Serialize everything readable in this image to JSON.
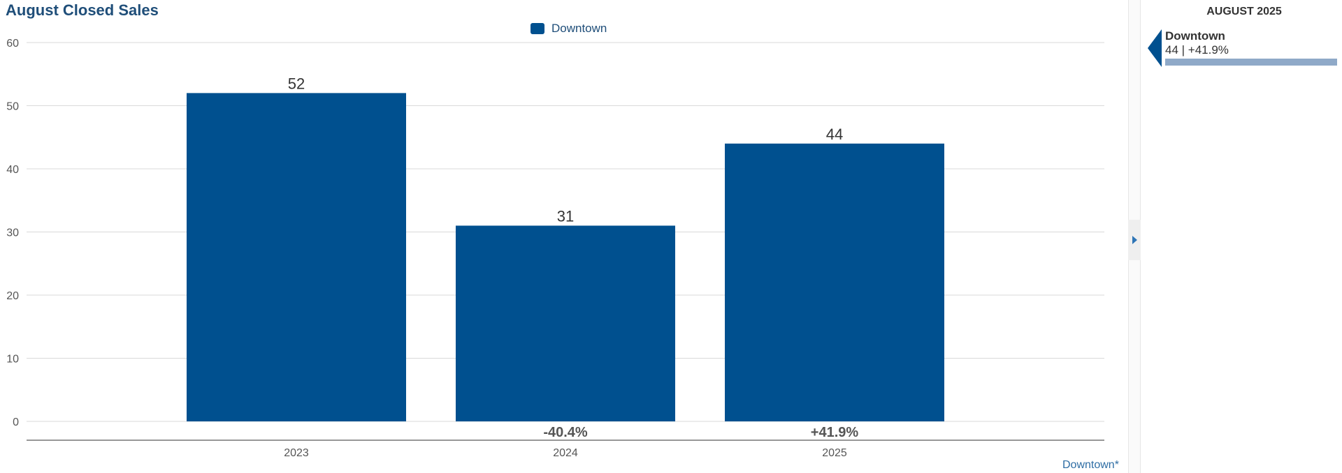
{
  "chart_data": {
    "type": "bar",
    "title": "August Closed Sales",
    "categories": [
      "2023",
      "2024",
      "2025"
    ],
    "series": [
      {
        "name": "Downtown",
        "values": [
          52,
          31,
          44
        ],
        "color": "#00508f"
      }
    ],
    "change_labels": [
      "",
      "-40.4%",
      "+41.9%"
    ],
    "ylim": [
      0,
      60
    ],
    "yticks": [
      0,
      10,
      20,
      30,
      40,
      50,
      60
    ],
    "grid": true,
    "legend": "top-center",
    "xlabel": "",
    "ylabel": ""
  },
  "footnote": "Downtown*",
  "side_panel": {
    "header": "AUGUST 2025",
    "items": [
      {
        "name": "Downtown",
        "stats": "44 | +41.9%",
        "bar_fraction": 1.0,
        "color": "#00508f"
      }
    ]
  }
}
